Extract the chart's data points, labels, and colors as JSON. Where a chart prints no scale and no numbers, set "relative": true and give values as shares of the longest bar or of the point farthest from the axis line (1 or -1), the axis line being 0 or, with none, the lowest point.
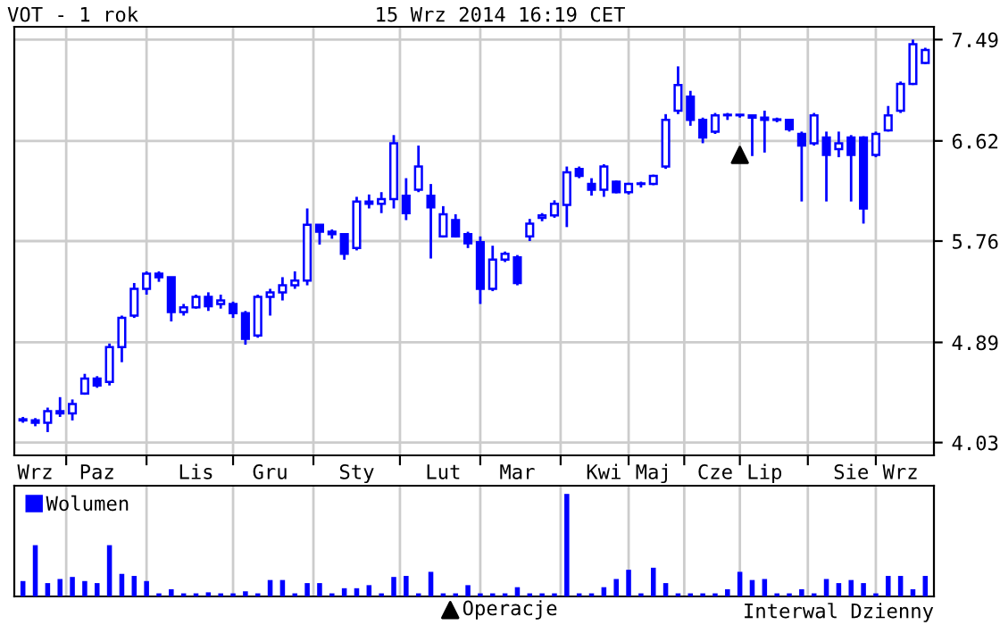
{
  "chart_data": [
    {
      "type": "candlestick",
      "title": "VOT - 1 rok",
      "subtitle": "15 Wrz 2014 16:19 CET",
      "color": "#0000ff",
      "categories": [
        null,
        "Wrz",
        null,
        null,
        null,
        null,
        "Paz",
        null,
        null,
        null,
        null,
        null,
        null,
        null,
        "Lis",
        null,
        null,
        null,
        null,
        null,
        "Gru",
        null,
        null,
        null,
        null,
        null,
        null,
        "Sty",
        null,
        null,
        null,
        null,
        null,
        null,
        "Lut",
        null,
        null,
        null,
        null,
        null,
        "Mar",
        null,
        null,
        null,
        null,
        null,
        null,
        "Kwi",
        null,
        null,
        null,
        "Maj",
        null,
        null,
        null,
        null,
        "Cze",
        null,
        null,
        null,
        "Lip",
        null,
        null,
        null,
        null,
        null,
        null,
        "Sie",
        null,
        null,
        null,
        "Wrz",
        null,
        null
      ],
      "ohlc": [
        [
          4.23,
          4.25,
          4.2,
          4.22
        ],
        [
          4.22,
          4.24,
          4.17,
          4.2
        ],
        [
          4.2,
          4.33,
          4.12,
          4.3
        ],
        [
          4.3,
          4.42,
          4.25,
          4.28
        ],
        [
          4.28,
          4.4,
          4.22,
          4.36
        ],
        [
          4.45,
          4.62,
          4.44,
          4.58
        ],
        [
          4.58,
          4.6,
          4.5,
          4.52
        ],
        [
          4.55,
          4.88,
          4.52,
          4.85
        ],
        [
          4.85,
          5.12,
          4.72,
          5.1
        ],
        [
          5.12,
          5.4,
          5.1,
          5.35
        ],
        [
          5.35,
          5.5,
          5.3,
          5.48
        ],
        [
          5.48,
          5.5,
          5.41,
          5.45
        ],
        [
          5.45,
          5.45,
          5.07,
          5.15
        ],
        [
          5.15,
          5.22,
          5.12,
          5.19
        ],
        [
          5.19,
          5.3,
          5.18,
          5.28
        ],
        [
          5.28,
          5.32,
          5.16,
          5.2
        ],
        [
          5.22,
          5.3,
          5.18,
          5.25
        ],
        [
          5.22,
          5.24,
          5.1,
          5.14
        ],
        [
          5.14,
          5.16,
          4.87,
          4.92
        ],
        [
          4.95,
          5.3,
          4.93,
          5.28
        ],
        [
          5.28,
          5.35,
          5.12,
          5.32
        ],
        [
          5.32,
          5.45,
          5.25,
          5.38
        ],
        [
          5.38,
          5.5,
          5.35,
          5.42
        ],
        [
          5.42,
          6.04,
          5.38,
          5.9
        ],
        [
          5.9,
          5.9,
          5.73,
          5.84
        ],
        [
          5.84,
          5.86,
          5.78,
          5.82
        ],
        [
          5.82,
          5.82,
          5.6,
          5.65
        ],
        [
          5.7,
          6.14,
          5.68,
          6.1
        ],
        [
          6.1,
          6.16,
          6.04,
          6.08
        ],
        [
          6.08,
          6.18,
          6.0,
          6.12
        ],
        [
          6.12,
          6.67,
          6.04,
          6.6
        ],
        [
          6.15,
          6.3,
          5.94,
          6.0
        ],
        [
          6.2,
          6.58,
          6.18,
          6.4
        ],
        [
          6.15,
          6.25,
          5.61,
          6.05
        ],
        [
          5.8,
          6.06,
          5.79,
          5.99
        ],
        [
          5.94,
          5.99,
          5.79,
          5.8
        ],
        [
          5.82,
          5.84,
          5.7,
          5.74
        ],
        [
          5.75,
          5.8,
          5.22,
          5.35
        ],
        [
          5.35,
          5.72,
          5.33,
          5.6
        ],
        [
          5.6,
          5.67,
          5.58,
          5.65
        ],
        [
          5.62,
          5.64,
          5.38,
          5.4
        ],
        [
          5.8,
          5.95,
          5.76,
          5.91
        ],
        [
          5.96,
          6.0,
          5.93,
          5.98
        ],
        [
          5.98,
          6.11,
          5.96,
          6.08
        ],
        [
          6.07,
          6.4,
          5.88,
          6.35
        ],
        [
          6.38,
          6.4,
          6.3,
          6.32
        ],
        [
          6.25,
          6.3,
          6.15,
          6.2
        ],
        [
          6.2,
          6.42,
          6.14,
          6.4
        ],
        [
          6.27,
          6.28,
          6.17,
          6.18
        ],
        [
          6.18,
          6.26,
          6.16,
          6.25
        ],
        [
          6.25,
          6.27,
          6.22,
          6.25
        ],
        [
          6.25,
          6.33,
          6.24,
          6.32
        ],
        [
          6.4,
          6.85,
          6.38,
          6.8
        ],
        [
          6.88,
          7.26,
          6.85,
          7.1
        ],
        [
          7.0,
          7.05,
          6.75,
          6.8
        ],
        [
          6.8,
          6.82,
          6.6,
          6.65
        ],
        [
          6.7,
          6.86,
          6.68,
          6.84
        ],
        [
          6.84,
          6.86,
          6.8,
          6.84
        ],
        [
          6.84,
          6.85,
          6.82,
          6.84
        ],
        [
          6.84,
          6.84,
          6.49,
          6.82
        ],
        [
          6.82,
          6.88,
          6.52,
          6.8
        ],
        [
          6.8,
          6.82,
          6.78,
          6.8
        ],
        [
          6.8,
          6.81,
          6.7,
          6.72
        ],
        [
          6.68,
          6.7,
          6.1,
          6.58
        ],
        [
          6.6,
          6.86,
          6.58,
          6.84
        ],
        [
          6.65,
          6.7,
          6.1,
          6.5
        ],
        [
          6.55,
          6.7,
          6.48,
          6.6
        ],
        [
          6.65,
          6.67,
          6.1,
          6.5
        ],
        [
          6.65,
          6.66,
          5.91,
          6.04
        ],
        [
          6.5,
          6.7,
          6.48,
          6.68
        ],
        [
          6.71,
          6.92,
          6.7,
          6.84
        ],
        [
          6.88,
          7.13,
          6.86,
          7.11
        ],
        [
          7.11,
          7.49,
          7.1,
          7.45
        ],
        [
          7.29,
          7.42,
          7.28,
          7.4
        ]
      ],
      "series": [
        {
          "type": "scatter",
          "name": "Operacje",
          "color": "#000000",
          "marker": "triangle",
          "values": [
            null,
            null,
            null,
            null,
            null,
            null,
            null,
            null,
            null,
            null,
            null,
            null,
            null,
            null,
            null,
            null,
            null,
            null,
            null,
            null,
            null,
            null,
            null,
            null,
            null,
            null,
            null,
            null,
            null,
            null,
            null,
            null,
            null,
            null,
            null,
            null,
            null,
            null,
            null,
            null,
            null,
            null,
            null,
            null,
            null,
            null,
            null,
            null,
            null,
            null,
            null,
            null,
            null,
            null,
            null,
            null,
            null,
            null,
            6.5,
            null,
            null,
            null,
            null,
            null,
            null,
            null,
            null,
            null,
            null,
            null,
            null,
            null,
            null,
            null
          ]
        }
      ],
      "ylim": [
        3.92,
        7.6
      ],
      "yticks": [
        4.03,
        4.89,
        5.76,
        6.62,
        7.49
      ],
      "grid": true,
      "legend": "bottom",
      "annotations": [
        "Interwal Dzienny"
      ]
    },
    {
      "type": "bar",
      "relative": true,
      "grid": "x",
      "legend": "top left",
      "categories": [
        null,
        null,
        null,
        null,
        null,
        null,
        null,
        null,
        null,
        null,
        null,
        null,
        null,
        null,
        null,
        null,
        null,
        null,
        null,
        null,
        null,
        null,
        null,
        null,
        null,
        null,
        null,
        null,
        null,
        null,
        null,
        null,
        null,
        null,
        null,
        null,
        null,
        null,
        null,
        null,
        null,
        null,
        null,
        null,
        null,
        null,
        null,
        null,
        null,
        null,
        null,
        null,
        null,
        null,
        null,
        null,
        null,
        null,
        null,
        null,
        null,
        null,
        null,
        null,
        null,
        null,
        null,
        null,
        null,
        null,
        null,
        null,
        null,
        null
      ],
      "series": [
        {
          "name": "Wolumen",
          "color": "#0000ff",
          "values": [
            0.15,
            0.5,
            0.13,
            0.17,
            0.19,
            0.15,
            0.13,
            0.5,
            0.22,
            0.2,
            0.15,
            0.03,
            0.07,
            0.03,
            0.03,
            0.04,
            0.03,
            0.03,
            0.05,
            0.03,
            0.16,
            0.16,
            0.03,
            0.13,
            0.13,
            0.03,
            0.08,
            0.08,
            0.11,
            0.03,
            0.19,
            0.2,
            0.03,
            0.24,
            0.03,
            0.03,
            0.11,
            0.03,
            0.03,
            0.03,
            0.09,
            0.03,
            0.03,
            0.03,
            1.0,
            0.03,
            0.03,
            0.09,
            0.17,
            0.26,
            0.03,
            0.28,
            0.13,
            0.03,
            0.03,
            0.03,
            0.03,
            0.07,
            0.24,
            0.16,
            0.17,
            0.03,
            0.03,
            0.07,
            0.03,
            0.17,
            0.13,
            0.16,
            0.13,
            0.03,
            0.2,
            0.2,
            0.07,
            0.2
          ]
        }
      ]
    }
  ]
}
